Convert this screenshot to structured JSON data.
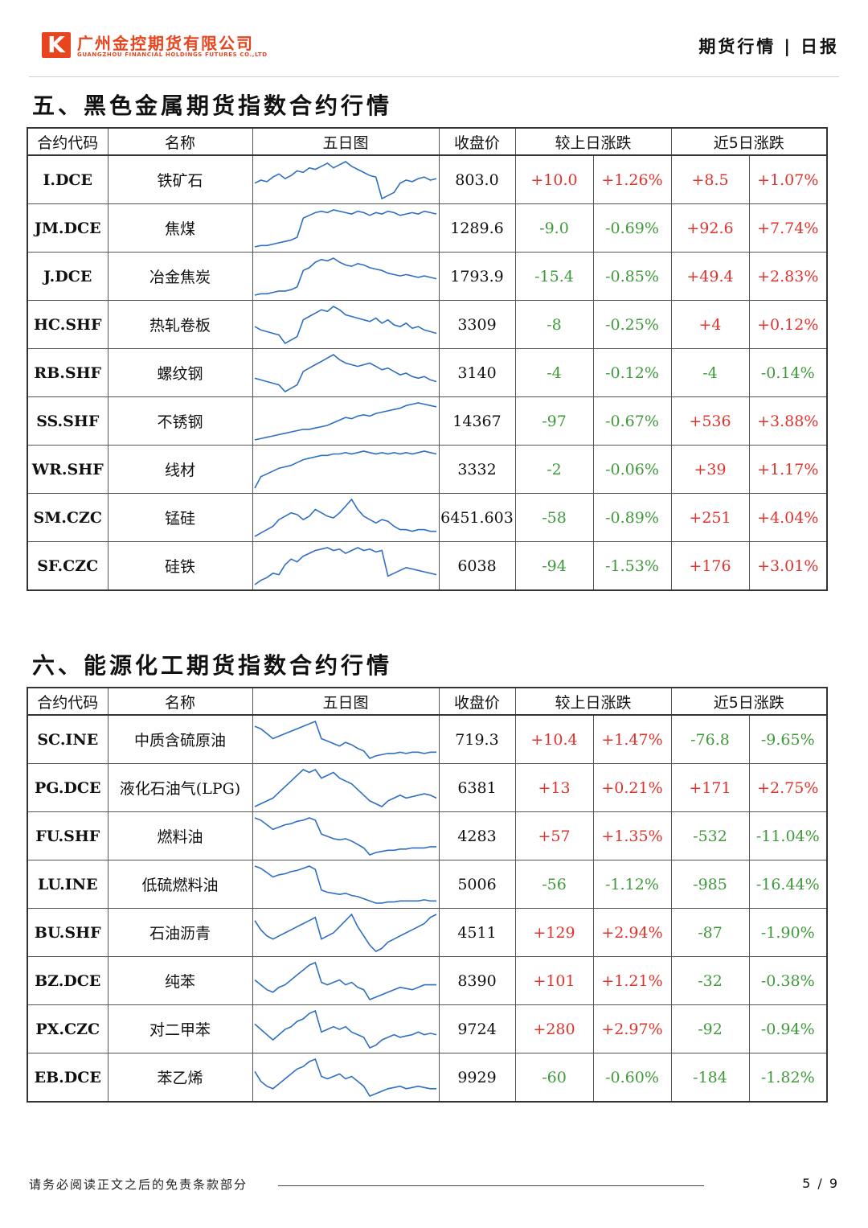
{
  "header": {
    "logo_letter": "K",
    "company_cn": "广州金控期货有限公司",
    "company_en": "GUANGZHOU FINANCIAL HOLDINGS FUTURES CO.,LTD",
    "report_type": "期货行情",
    "separator": "|",
    "report_freq": "日报"
  },
  "colors": {
    "up": "#e0332c",
    "down": "#3f9a3b",
    "sparkline": "#2f6fc1",
    "brand": "#e8451e"
  },
  "columns": [
    "合约代码",
    "名称",
    "五日图",
    "收盘价",
    "较上日涨跌",
    "近5日涨跌"
  ],
  "sections": [
    {
      "title": "五、黑色金属期货指数合约行情",
      "rows": [
        {
          "code": "I.DCE",
          "name": "铁矿石",
          "close": "803.0",
          "chg": "+10.0",
          "chg_pct": "+1.26%",
          "chg5": "+8.5",
          "chg5_pct": "+1.07%",
          "spark": [
            20,
            22,
            21,
            24,
            26,
            23,
            25,
            28,
            27,
            30,
            29,
            31,
            33,
            30,
            32,
            34,
            31,
            29,
            27,
            25,
            24,
            10,
            12,
            14,
            20,
            22,
            21,
            23,
            24,
            22,
            23
          ]
        },
        {
          "code": "JM.DCE",
          "name": "焦煤",
          "close": "1289.6",
          "chg": "-9.0",
          "chg_pct": "-0.69%",
          "chg5": "+92.6",
          "chg5_pct": "+7.74%",
          "spark": [
            5,
            6,
            6,
            7,
            8,
            9,
            10,
            12,
            26,
            28,
            30,
            31,
            30,
            32,
            31,
            30,
            29,
            31,
            30,
            28,
            30,
            29,
            31,
            30,
            28,
            29,
            30,
            29,
            31,
            30,
            29
          ]
        },
        {
          "code": "J.DCE",
          "name": "冶金焦炭",
          "close": "1793.9",
          "chg": "-15.4",
          "chg_pct": "-0.85%",
          "chg5": "+49.4",
          "chg5_pct": "+2.83%",
          "spark": [
            6,
            7,
            7,
            8,
            9,
            9,
            10,
            12,
            24,
            26,
            30,
            32,
            31,
            33,
            30,
            28,
            27,
            29,
            28,
            26,
            25,
            24,
            22,
            21,
            20,
            21,
            20,
            19,
            20,
            19,
            18
          ]
        },
        {
          "code": "HC.SHF",
          "name": "热轧卷板",
          "close": "3309",
          "chg": "-8",
          "chg_pct": "-0.25%",
          "chg5": "+4",
          "chg5_pct": "+0.12%",
          "spark": [
            20,
            18,
            17,
            16,
            15,
            10,
            12,
            14,
            24,
            26,
            28,
            30,
            29,
            32,
            30,
            27,
            26,
            25,
            24,
            23,
            25,
            22,
            24,
            21,
            20,
            22,
            19,
            20,
            18,
            17,
            16
          ]
        },
        {
          "code": "RB.SHF",
          "name": "螺纹钢",
          "close": "3140",
          "chg": "-4",
          "chg_pct": "-0.12%",
          "chg5": "-4",
          "chg5_pct": "-0.14%",
          "spark": [
            18,
            17,
            16,
            15,
            14,
            10,
            12,
            14,
            22,
            24,
            26,
            28,
            30,
            32,
            29,
            27,
            26,
            25,
            26,
            27,
            25,
            23,
            24,
            22,
            20,
            21,
            19,
            18,
            19,
            17,
            16
          ]
        },
        {
          "code": "SS.SHF",
          "name": "不锈钢",
          "close": "14367",
          "chg": "-97",
          "chg_pct": "-0.67%",
          "chg5": "+536",
          "chg5_pct": "+3.88%",
          "spark": [
            4,
            5,
            6,
            7,
            8,
            9,
            10,
            11,
            12,
            12,
            13,
            14,
            15,
            17,
            19,
            21,
            20,
            22,
            23,
            22,
            24,
            25,
            26,
            27,
            28,
            30,
            31,
            32,
            31,
            30,
            29
          ]
        },
        {
          "code": "WR.SHF",
          "name": "线材",
          "close": "3332",
          "chg": "-2",
          "chg_pct": "-0.06%",
          "chg5": "+39",
          "chg5_pct": "+1.17%",
          "spark": [
            6,
            14,
            16,
            18,
            20,
            21,
            22,
            24,
            26,
            27,
            28,
            29,
            29,
            30,
            30,
            31,
            30,
            31,
            32,
            31,
            30,
            31,
            30,
            31,
            30,
            31,
            30,
            31,
            32,
            31,
            30
          ]
        },
        {
          "code": "SM.CZC",
          "name": "锰硅",
          "close": "6451.603",
          "chg": "-58",
          "chg_pct": "-0.89%",
          "chg5": "+251",
          "chg5_pct": "+4.04%",
          "spark": [
            8,
            10,
            12,
            14,
            18,
            20,
            22,
            21,
            18,
            20,
            24,
            22,
            20,
            19,
            22,
            26,
            30,
            24,
            20,
            18,
            16,
            18,
            17,
            14,
            12,
            12,
            11,
            12,
            12,
            11,
            11
          ]
        },
        {
          "code": "SF.CZC",
          "name": "硅铁",
          "close": "6038",
          "chg": "-94",
          "chg_pct": "-1.53%",
          "chg5": "+176",
          "chg5_pct": "+3.01%",
          "spark": [
            6,
            9,
            11,
            14,
            13,
            20,
            24,
            22,
            26,
            28,
            30,
            31,
            32,
            30,
            31,
            28,
            30,
            32,
            30,
            31,
            29,
            30,
            12,
            14,
            16,
            18,
            17,
            16,
            15,
            14,
            13
          ]
        }
      ]
    },
    {
      "title": "六、能源化工期货指数合约行情",
      "rows": [
        {
          "code": "SC.INE",
          "name": "中质含硫原油",
          "close": "719.3",
          "chg": "+10.4",
          "chg_pct": "+1.47%",
          "chg5": "-76.8",
          "chg5_pct": "-9.65%",
          "spark": [
            34,
            32,
            28,
            24,
            26,
            28,
            30,
            32,
            34,
            36,
            38,
            24,
            22,
            20,
            18,
            21,
            19,
            16,
            14,
            8,
            10,
            11,
            12,
            12,
            13,
            12,
            13,
            13,
            12,
            13,
            13
          ]
        },
        {
          "code": "PG.DCE",
          "name": "液化石油气(LPG)",
          "close": "6381",
          "chg": "+13",
          "chg_pct": "+0.21%",
          "chg5": "+171",
          "chg5_pct": "+2.75%",
          "spark": [
            10,
            12,
            14,
            16,
            20,
            24,
            28,
            32,
            36,
            34,
            36,
            30,
            32,
            34,
            30,
            28,
            26,
            22,
            18,
            14,
            12,
            10,
            14,
            16,
            18,
            16,
            17,
            18,
            19,
            18,
            16
          ]
        },
        {
          "code": "FU.SHF",
          "name": "燃料油",
          "close": "4283",
          "chg": "+57",
          "chg_pct": "+1.35%",
          "chg5": "-532",
          "chg5_pct": "-11.04%",
          "spark": [
            38,
            36,
            32,
            28,
            30,
            32,
            33,
            35,
            36,
            38,
            36,
            24,
            22,
            20,
            19,
            20,
            18,
            15,
            12,
            6,
            8,
            9,
            10,
            10,
            11,
            11,
            12,
            12,
            12,
            13,
            13
          ]
        },
        {
          "code": "LU.INE",
          "name": "低硫燃料油",
          "close": "5006",
          "chg": "-56",
          "chg_pct": "-1.12%",
          "chg5": "-985",
          "chg5_pct": "-16.44%",
          "spark": [
            40,
            38,
            34,
            30,
            32,
            33,
            35,
            36,
            38,
            40,
            37,
            18,
            16,
            15,
            14,
            15,
            13,
            12,
            10,
            8,
            6,
            6,
            7,
            7,
            8,
            8,
            8,
            8,
            9,
            8,
            8
          ]
        },
        {
          "code": "BU.SHF",
          "name": "石油沥青",
          "close": "4511",
          "chg": "+129",
          "chg_pct": "+2.94%",
          "chg5": "-87",
          "chg5_pct": "-1.90%",
          "spark": [
            30,
            24,
            20,
            18,
            20,
            22,
            24,
            26,
            28,
            30,
            32,
            18,
            20,
            22,
            26,
            30,
            34,
            26,
            20,
            14,
            10,
            12,
            16,
            18,
            20,
            22,
            24,
            26,
            28,
            32,
            34
          ]
        },
        {
          "code": "BZ.DCE",
          "name": "纯苯",
          "close": "8390",
          "chg": "+101",
          "chg_pct": "+1.21%",
          "chg5": "-32",
          "chg5_pct": "-0.38%",
          "spark": [
            24,
            20,
            16,
            14,
            18,
            20,
            24,
            28,
            32,
            36,
            38,
            22,
            20,
            22,
            24,
            20,
            22,
            18,
            16,
            8,
            10,
            12,
            14,
            16,
            18,
            17,
            16,
            18,
            20,
            20,
            20
          ]
        },
        {
          "code": "PX.CZC",
          "name": "对二甲苯",
          "close": "9724",
          "chg": "+280",
          "chg_pct": "+2.97%",
          "chg5": "-92",
          "chg5_pct": "-0.94%",
          "spark": [
            26,
            22,
            18,
            14,
            18,
            22,
            24,
            28,
            30,
            34,
            36,
            20,
            22,
            24,
            22,
            24,
            20,
            18,
            16,
            8,
            10,
            14,
            16,
            18,
            16,
            17,
            18,
            20,
            18,
            19,
            18
          ]
        },
        {
          "code": "EB.DCE",
          "name": "苯乙烯",
          "close": "9929",
          "chg": "-60",
          "chg_pct": "-0.60%",
          "chg5": "-184",
          "chg5_pct": "-1.82%",
          "spark": [
            26,
            18,
            14,
            12,
            16,
            20,
            24,
            28,
            30,
            34,
            36,
            22,
            20,
            22,
            24,
            20,
            22,
            18,
            14,
            6,
            8,
            10,
            12,
            13,
            14,
            12,
            13,
            14,
            13,
            12,
            12
          ]
        }
      ]
    }
  ],
  "footer": {
    "disclaimer": "请务必阅读正文之后的免责条款部分",
    "page": "5 / 9"
  }
}
